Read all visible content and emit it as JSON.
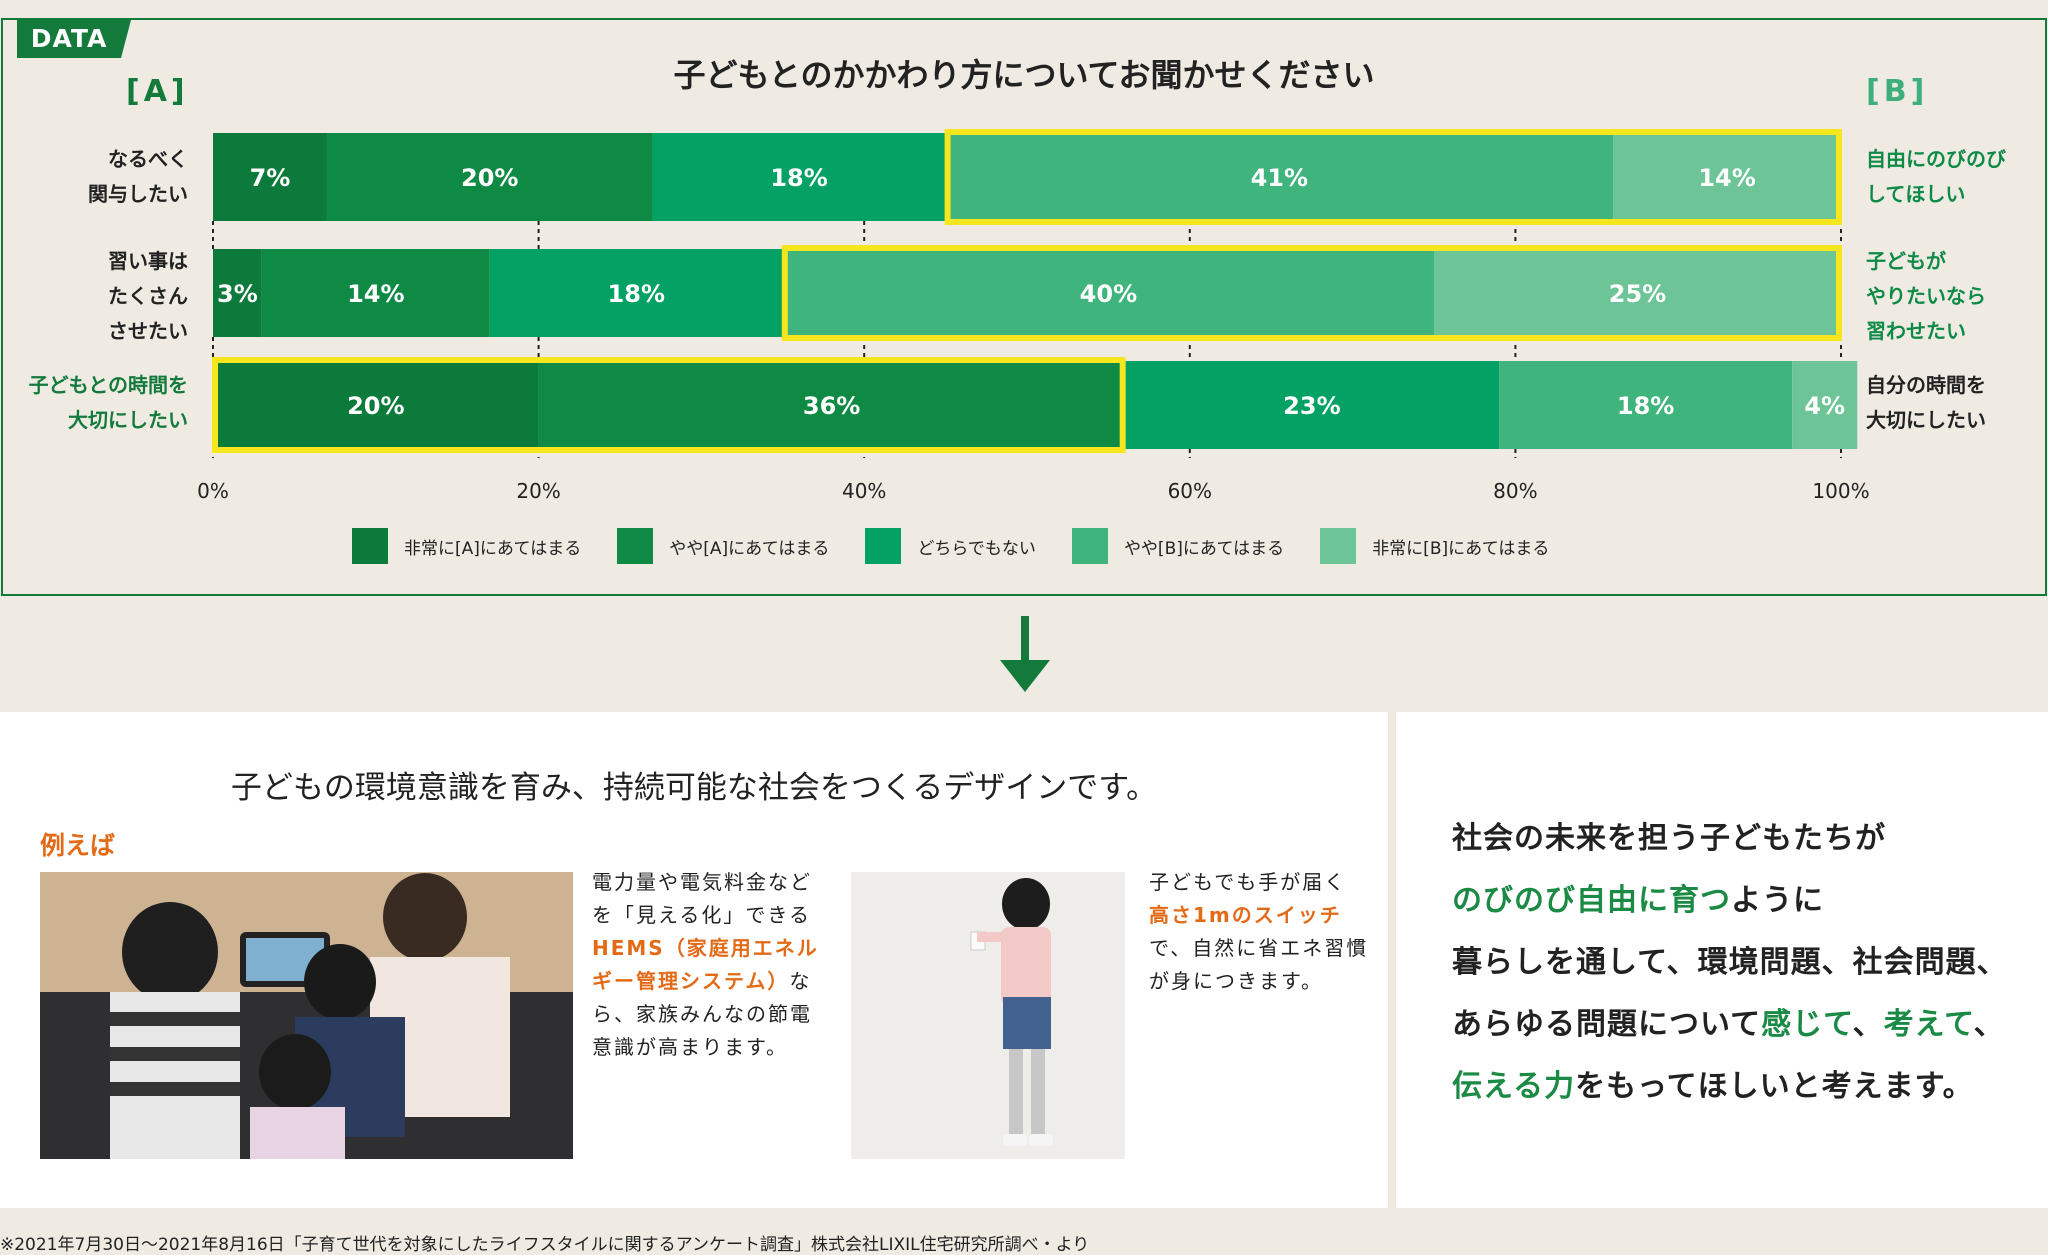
{
  "data_tag": "DATA",
  "chart_data": {
    "type": "bar",
    "orientation": "horizontal",
    "stacked": true,
    "title": "子どもとのかかわり方についてお聞かせください",
    "side_a": "[A]",
    "side_b": "[B]",
    "rows": [
      {
        "a_label": "なるべく\n関与したい",
        "b_label": "自由にのびのび\nしてほしい",
        "values": [
          7,
          20,
          18,
          41,
          14
        ],
        "highlight": [
          3,
          4
        ]
      },
      {
        "a_label": "習い事は\nたくさん\nさせたい",
        "b_label": "子どもが\nやりたいなら\n習わせたい",
        "values": [
          3,
          14,
          18,
          40,
          25
        ],
        "highlight": [
          3,
          4
        ]
      },
      {
        "a_label": "子どもとの時間を\n大切にしたい",
        "b_label": "自分の時間を\n大切にしたい",
        "values": [
          20,
          36,
          23,
          18,
          4
        ],
        "highlight": [
          0,
          1
        ]
      }
    ],
    "series": [
      {
        "name": "非常に[A]にあてはまる",
        "color": "#0b7a3a"
      },
      {
        "name": "やや[A]にあてはまる",
        "color": "#0f8a45"
      },
      {
        "name": "どちらでもない",
        "color": "#03a163"
      },
      {
        "name": "やや[B]にあてはまる",
        "color": "#3fb47d"
      },
      {
        "name": "非常に[B]にあてはまる",
        "color": "#6cc497"
      }
    ],
    "x_ticks": [
      "0%",
      "20%",
      "40%",
      "60%",
      "80%",
      "100%"
    ],
    "xlim": [
      0,
      100
    ],
    "highlight_color": "#f6e61e",
    "legend_position": "bottom"
  },
  "design": {
    "title": "子どもの環境意識を育み、持続可能な社会をつくるデザインです。",
    "example_label": "例えば",
    "hems_pre": "電力量や電気料金などを「見える化」できる",
    "hems_hl": "HEMS（家庭用エネルギー管理システム）",
    "hems_post": "なら、家族みんなの節電意識が高まります。",
    "switch_pre": "子どもでも手が届く",
    "switch_hl": "高さ1mのスイッチ",
    "switch_post": "で、自然に省エネ習慣が身につきます。"
  },
  "message": {
    "l1": "社会の未来を担う子どもたちが",
    "l2_g": "のびのび自由に育つ",
    "l2": "ように",
    "l3": "暮らしを通して、環境問題、社会問題、",
    "l4": "あらゆる問題について",
    "l4_g1": "感じて",
    "l4_s": "、",
    "l4_g2": "考えて",
    "l4_e": "、",
    "l5_g": "伝える力",
    "l5": "をもってほしいと考えます。"
  },
  "footnote": "※2021年7月30日〜2021年8月16日「子育て世代を対象にしたライフスタイルに関するアンケート調査」株式会社LIXIL住宅研究所調べ・より",
  "colors": {
    "brand_green": "#137a3c",
    "accent_orange": "#e36a16",
    "background": "#efebe3"
  }
}
